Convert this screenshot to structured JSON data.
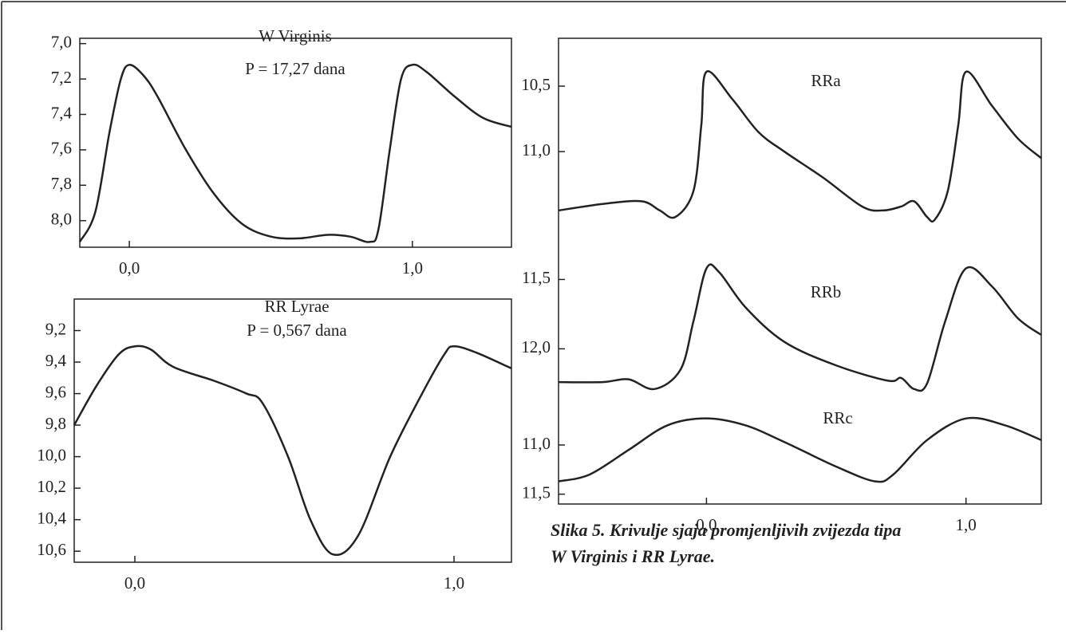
{
  "chart_data": [
    {
      "type": "line",
      "title": "W Virginis",
      "subtitle": "P = 17,27 dana",
      "color": "#222222",
      "x": [
        -0.175,
        -0.12,
        -0.07,
        -0.03,
        0.0,
        0.05,
        0.1,
        0.2,
        0.3,
        0.4,
        0.5,
        0.6,
        0.7,
        0.78,
        0.85,
        0.88,
        0.92,
        0.96,
        1.0,
        1.05,
        1.15,
        1.25,
        1.35
      ],
      "values": [
        8.12,
        7.95,
        7.5,
        7.2,
        7.12,
        7.18,
        7.3,
        7.6,
        7.85,
        8.02,
        8.09,
        8.1,
        8.08,
        8.09,
        8.12,
        8.05,
        7.6,
        7.2,
        7.12,
        7.16,
        7.3,
        7.42,
        7.47
      ],
      "xlim": [
        -0.175,
        1.35
      ],
      "ylim": [
        6.97,
        8.15
      ],
      "y_inverted": true,
      "xticks": [
        {
          "value": 0,
          "label": "0,0"
        },
        {
          "value": 1,
          "label": "1,0"
        }
      ],
      "yticks": [
        {
          "value": 7.0,
          "label": "7,0"
        },
        {
          "value": 7.2,
          "label": "7,2"
        },
        {
          "value": 7.4,
          "label": "7,4"
        },
        {
          "value": 7.6,
          "label": "7,6"
        },
        {
          "value": 7.8,
          "label": "7,8"
        },
        {
          "value": 8.0,
          "label": "8,0"
        }
      ]
    },
    {
      "type": "line",
      "title": "RR Lyrae",
      "subtitle": "P = 0,567 dana",
      "color": "#222222",
      "x": [
        -0.19,
        -0.12,
        -0.05,
        0.0,
        0.05,
        0.12,
        0.25,
        0.35,
        0.4,
        0.48,
        0.55,
        0.62,
        0.7,
        0.8,
        0.9,
        0.97,
        1.0,
        1.07,
        1.18
      ],
      "values": [
        9.8,
        9.55,
        9.35,
        9.3,
        9.32,
        9.43,
        9.52,
        9.6,
        9.66,
        10.0,
        10.4,
        10.62,
        10.5,
        10.0,
        9.6,
        9.35,
        9.3,
        9.34,
        9.44
      ],
      "xlim": [
        -0.19,
        1.18
      ],
      "ylim": [
        9.0,
        10.67
      ],
      "y_inverted": true,
      "xticks": [
        {
          "value": 0,
          "label": "0,0"
        },
        {
          "value": 1,
          "label": "1,0"
        }
      ],
      "yticks": [
        {
          "value": 9.2,
          "label": "9,2"
        },
        {
          "value": 9.4,
          "label": "9,4"
        },
        {
          "value": 9.6,
          "label": "9,6"
        },
        {
          "value": 9.8,
          "label": "9,8"
        },
        {
          "value": 10.0,
          "label": "10,0"
        },
        {
          "value": 10.2,
          "label": "10,2"
        },
        {
          "value": 10.4,
          "label": "10,4"
        },
        {
          "value": 10.6,
          "label": "10,6"
        }
      ]
    },
    {
      "type": "line",
      "title": "RRa",
      "color": "#222222",
      "x": [
        -0.57,
        -0.4,
        -0.25,
        -0.18,
        -0.12,
        -0.05,
        -0.02,
        0.0,
        0.1,
        0.2,
        0.3,
        0.45,
        0.6,
        0.68,
        0.75,
        0.8,
        0.85,
        0.88,
        0.93,
        0.97,
        1.0,
        1.1,
        1.2,
        1.29
      ],
      "values": [
        11.45,
        11.4,
        11.38,
        11.45,
        11.5,
        11.3,
        10.8,
        10.39,
        10.6,
        10.85,
        11.0,
        11.2,
        11.42,
        11.45,
        11.42,
        11.38,
        11.5,
        11.52,
        11.3,
        10.8,
        10.39,
        10.65,
        10.9,
        11.05
      ],
      "xlim": [
        -0.57,
        1.29
      ],
      "ylim": [
        10.134,
        11.67
      ],
      "y_inverted": true,
      "yticks": [
        {
          "value": 10.5,
          "label": "10,5"
        },
        {
          "value": 11.0,
          "label": "11,0"
        }
      ]
    },
    {
      "type": "line",
      "title": "RRb",
      "color": "#222222",
      "x": [
        -0.57,
        -0.4,
        -0.3,
        -0.2,
        -0.1,
        -0.05,
        0.0,
        0.05,
        0.15,
        0.3,
        0.5,
        0.7,
        0.75,
        0.8,
        0.85,
        0.92,
        1.0,
        1.1,
        1.2,
        1.29
      ],
      "values": [
        12.24,
        12.24,
        12.22,
        12.29,
        12.15,
        11.8,
        11.42,
        11.45,
        11.7,
        11.95,
        12.12,
        12.23,
        12.21,
        12.29,
        12.25,
        11.8,
        11.42,
        11.55,
        11.78,
        11.9
      ],
      "xlim": [
        -0.57,
        1.29
      ],
      "ylim": [
        11.21,
        12.36
      ],
      "y_inverted": true,
      "yticks": [
        {
          "value": 11.5,
          "label": "11,5"
        },
        {
          "value": 12.0,
          "label": "12,0"
        }
      ]
    },
    {
      "type": "line",
      "title": "RRc",
      "color": "#222222",
      "x": [
        -0.57,
        -0.45,
        -0.3,
        -0.15,
        0.0,
        0.15,
        0.3,
        0.5,
        0.65,
        0.72,
        0.85,
        1.0,
        1.15,
        1.29
      ],
      "values": [
        11.37,
        11.3,
        11.05,
        10.8,
        10.73,
        10.8,
        10.97,
        11.22,
        11.37,
        11.3,
        10.95,
        10.73,
        10.8,
        10.95
      ],
      "xlim": [
        -0.57,
        1.29
      ],
      "ylim": [
        10.53,
        11.6
      ],
      "y_inverted": true,
      "xticks": [
        {
          "value": 0,
          "label": "0,0"
        },
        {
          "value": 1,
          "label": "1,0"
        }
      ],
      "yticks": [
        {
          "value": 11.0,
          "label": "11,0"
        },
        {
          "value": 11.5,
          "label": "11,5"
        }
      ]
    }
  ],
  "caption": [
    "Slika 5. Krivulje sjaja promjenljivih zvijezda tipa",
    "W Virginis i RR Lyrae."
  ]
}
